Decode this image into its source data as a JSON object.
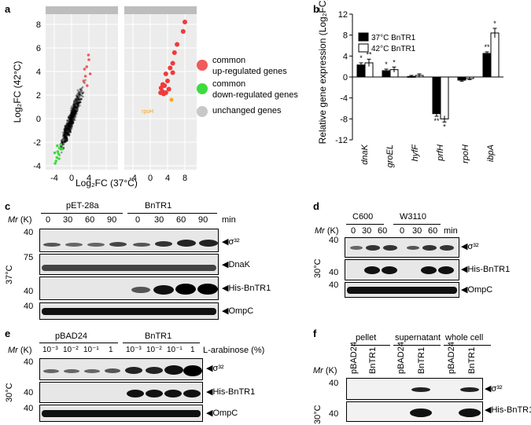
{
  "panel_a": {
    "label": "a",
    "xlabel": "Log₂FC (37°C)",
    "ylabel": "Log₂FC (42°C)",
    "y_ticks": [
      "8",
      "6",
      "4",
      "2",
      "0",
      "-2",
      "-4"
    ],
    "x_ticks_left": [
      "-4",
      "0",
      "4"
    ],
    "x_ticks_right": [
      "-4",
      "0",
      "4",
      "8"
    ],
    "annotation": "rpoH",
    "legend": [
      {
        "label": "common up-regulated genes",
        "line1": "common",
        "line2": "up-regulated genes",
        "color": "#f15a5a"
      },
      {
        "label": "common down-regulated genes",
        "line1": "common",
        "line2": "down-regulated genes",
        "color": "#3ddc3d"
      },
      {
        "label": "unchanged genes",
        "line1": "unchanged genes",
        "line2": "",
        "color": "#c8c8c8"
      }
    ]
  },
  "chart_data": {
    "type": "bar",
    "title": "",
    "xlabel": "",
    "ylabel": "Relative gene expression (Log₂FC)",
    "ylim": [
      -12,
      12
    ],
    "yticks": [
      "12",
      "8",
      "4",
      "0",
      "-4",
      "-8",
      "-12"
    ],
    "categories": [
      "dnaK",
      "groEL",
      "hyfF",
      "prfH",
      "rpoH",
      "ibpA"
    ],
    "series": [
      {
        "name": "37°C BnTR1",
        "color": "#000000",
        "values": [
          2.3,
          1.2,
          0.1,
          -7.0,
          -0.6,
          4.5
        ],
        "errors": [
          0.4,
          0.3,
          0.2,
          0.5,
          0.2,
          0.3
        ]
      },
      {
        "name": "42°C BnTR1",
        "color": "#ffffff",
        "values": [
          2.7,
          1.4,
          0.3,
          -8.0,
          -0.3,
          8.4
        ],
        "errors": [
          0.7,
          0.5,
          0.3,
          0.6,
          0.2,
          0.9
        ]
      }
    ],
    "significance": [
      {
        "category": "dnaK",
        "s37": "*",
        "s42": "**"
      },
      {
        "category": "groEL",
        "s37": "*",
        "s42": "*"
      },
      {
        "category": "hyfF",
        "s37": "",
        "s42": ""
      },
      {
        "category": "prfH",
        "s37": "**",
        "s42": "*"
      },
      {
        "category": "rpoH",
        "s37": "",
        "s42": ""
      },
      {
        "category": "ibpA",
        "s37": "**",
        "s42": "*"
      }
    ],
    "legend": "top-left"
  },
  "panel_c": {
    "label": "c",
    "groups": [
      "pET-28a",
      "BnTR1"
    ],
    "times": [
      "0",
      "30",
      "60",
      "90",
      "0",
      "30",
      "60",
      "90"
    ],
    "unit": "min",
    "mr": "Mr (K)",
    "temp": "37°C",
    "markers": [
      "40",
      "75",
      "40",
      "40"
    ],
    "bands": [
      "◀σ³²",
      "◀DnaK",
      "◀His-BnTR1",
      "◀OmpC"
    ]
  },
  "panel_d": {
    "label": "d",
    "groups": [
      "C600",
      "W3110"
    ],
    "times": [
      "0",
      "30",
      "60",
      "0",
      "30",
      "60"
    ],
    "unit": "min",
    "mr": "Mr (K)",
    "temp": "30°C",
    "markers": [
      "40",
      "40",
      "40"
    ],
    "bands": [
      "◀σ³²",
      "◀His-BnTR1",
      "◀OmpC"
    ]
  },
  "panel_e": {
    "label": "e",
    "groups": [
      "pBAD24",
      "BnTR1"
    ],
    "conc": [
      "10⁻³",
      "10⁻²",
      "10⁻¹",
      "1",
      "10⁻³",
      "10⁻²",
      "10⁻¹",
      "1"
    ],
    "unit": "L-arabinose (%)",
    "mr": "Mr (K)",
    "temp": "30°C",
    "markers": [
      "40",
      "40",
      "40"
    ],
    "bands": [
      "◀σ³²",
      "◀His-BnTR1",
      "◀OmpC"
    ]
  },
  "panel_f": {
    "label": "f",
    "groups": [
      "pellet",
      "supernatant",
      "whole cell"
    ],
    "lanes": [
      "pBAD24",
      "BnTR1",
      "pBAD24",
      "BnTR1",
      "pBAD24",
      "BnTR1"
    ],
    "mr": "Mr (K)",
    "temp": "30°C",
    "markers": [
      "40",
      "40"
    ],
    "bands": [
      "◀σ³²",
      "◀His-BnTR1"
    ]
  }
}
